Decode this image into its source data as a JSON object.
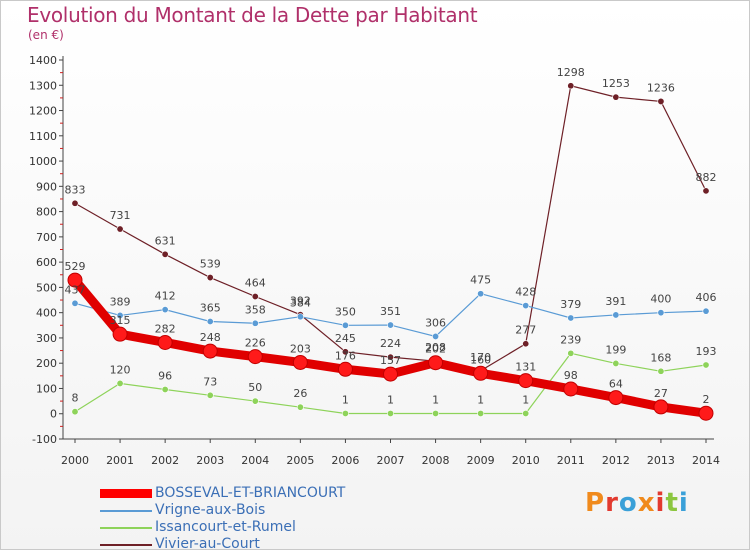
{
  "header": {
    "title": "Evolution du Montant de la Dette par Habitant",
    "unit": "(en €)"
  },
  "logo": {
    "text": "Proxiti",
    "colors": [
      "#f08a1c",
      "#e23a2f",
      "#3aa0d8",
      "#f08a1c",
      "#e23a2f",
      "#8cc63f",
      "#3aa0d8"
    ]
  },
  "chart_data": {
    "type": "line",
    "x": [
      2000,
      2001,
      2002,
      2003,
      2004,
      2005,
      2006,
      2007,
      2008,
      2009,
      2010,
      2011,
      2012,
      2013,
      2014
    ],
    "ylim": [
      -100,
      1400
    ],
    "yticks": [
      -100,
      0,
      100,
      200,
      300,
      400,
      500,
      600,
      700,
      800,
      900,
      1000,
      1100,
      1200,
      1300,
      1400
    ],
    "grid": false,
    "legend_position": "bottom-left",
    "series": [
      {
        "name": "Vivier-au-Court",
        "color": "#6e2027",
        "values": [
          833,
          731,
          631,
          539,
          464,
          392,
          245,
          224,
          208,
          170,
          277,
          1298,
          1253,
          1236,
          882
        ]
      },
      {
        "name": "Vrigne-aux-Bois",
        "color": "#5a9bd5",
        "values": [
          437,
          389,
          412,
          365,
          358,
          384,
          350,
          351,
          306,
          475,
          428,
          379,
          391,
          400,
          406
        ]
      },
      {
        "name": "Issancourt-et-Rumel",
        "color": "#8ed35a",
        "values": [
          8,
          120,
          96,
          73,
          50,
          26,
          1,
          1,
          1,
          1,
          1,
          239,
          199,
          168,
          193
        ]
      },
      {
        "name": "BOSSEVAL-ET-BRIANCOURT",
        "color": "#ff0000",
        "values": [
          529,
          315,
          282,
          248,
          226,
          203,
          176,
          157,
          202,
          160,
          131,
          98,
          64,
          27,
          2
        ]
      }
    ],
    "legend": [
      "BOSSEVAL-ET-BRIANCOURT",
      "Vrigne-aux-Bois",
      "Issancourt-et-Rumel",
      "Vivier-au-Court"
    ]
  }
}
